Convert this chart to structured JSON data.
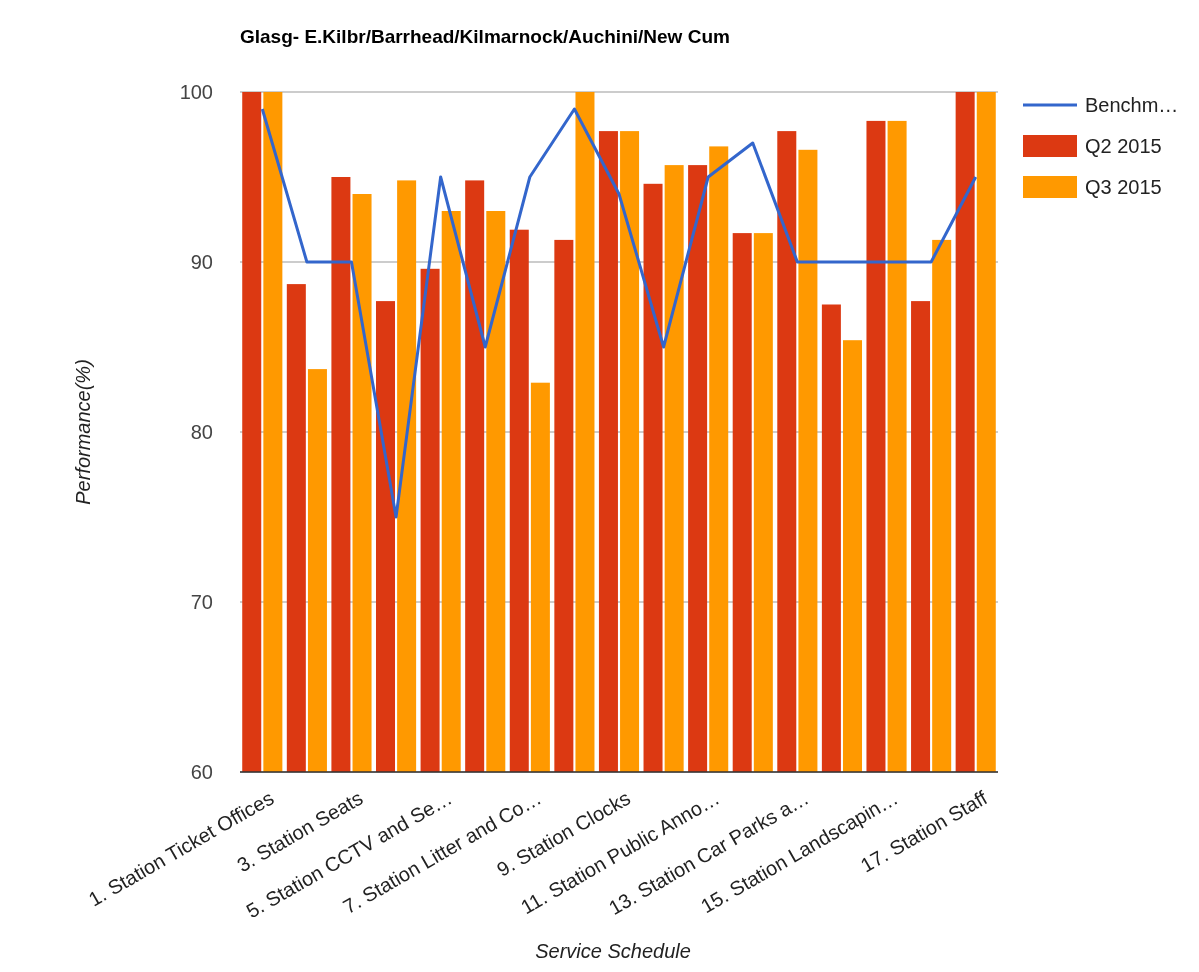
{
  "chart_data": {
    "type": "bar",
    "title": "Glasg- E.Kilbr/Barrhead/Kilmarnock/Auchini/New Cum",
    "xlabel": "Service Schedule",
    "ylabel": "Performance(%)",
    "categories": [
      "1. Station Ticket Offices",
      null,
      "3. Station Seats",
      null,
      "5. Station CCTV and Se…",
      null,
      "7. Station Litter and Co…",
      null,
      "9. Station Clocks",
      null,
      "11. Station Public Anno…",
      null,
      "13. Station Car Parks a…",
      null,
      "15. Station Landscapin…",
      null,
      "17. Station Staff"
    ],
    "series": [
      {
        "name": "Benchm…",
        "type": "line",
        "color": "#3366cc",
        "values": [
          99,
          90,
          90,
          75,
          95,
          85,
          95,
          99,
          94,
          85,
          95,
          97,
          90,
          90,
          90,
          90,
          95
        ]
      },
      {
        "name": "Q2 2015",
        "color": "#dc3912",
        "values": [
          100,
          88.7,
          95,
          87.7,
          89.6,
          94.8,
          91.9,
          91.3,
          97.7,
          94.6,
          95.7,
          91.7,
          97.7,
          87.5,
          98.3,
          87.7,
          100
        ]
      },
      {
        "name": "Q3 2015",
        "color": "#ff9900",
        "values": [
          100,
          83.7,
          94,
          94.8,
          93,
          93,
          82.9,
          100,
          97.7,
          95.7,
          96.8,
          91.7,
          96.6,
          85.4,
          98.3,
          91.3,
          100
        ]
      }
    ],
    "ylim": [
      60,
      100
    ],
    "yticks": [
      60,
      70,
      80,
      90,
      100
    ],
    "grid": "y",
    "legend": "top right",
    "marker": "none",
    "line_style": "solid"
  }
}
